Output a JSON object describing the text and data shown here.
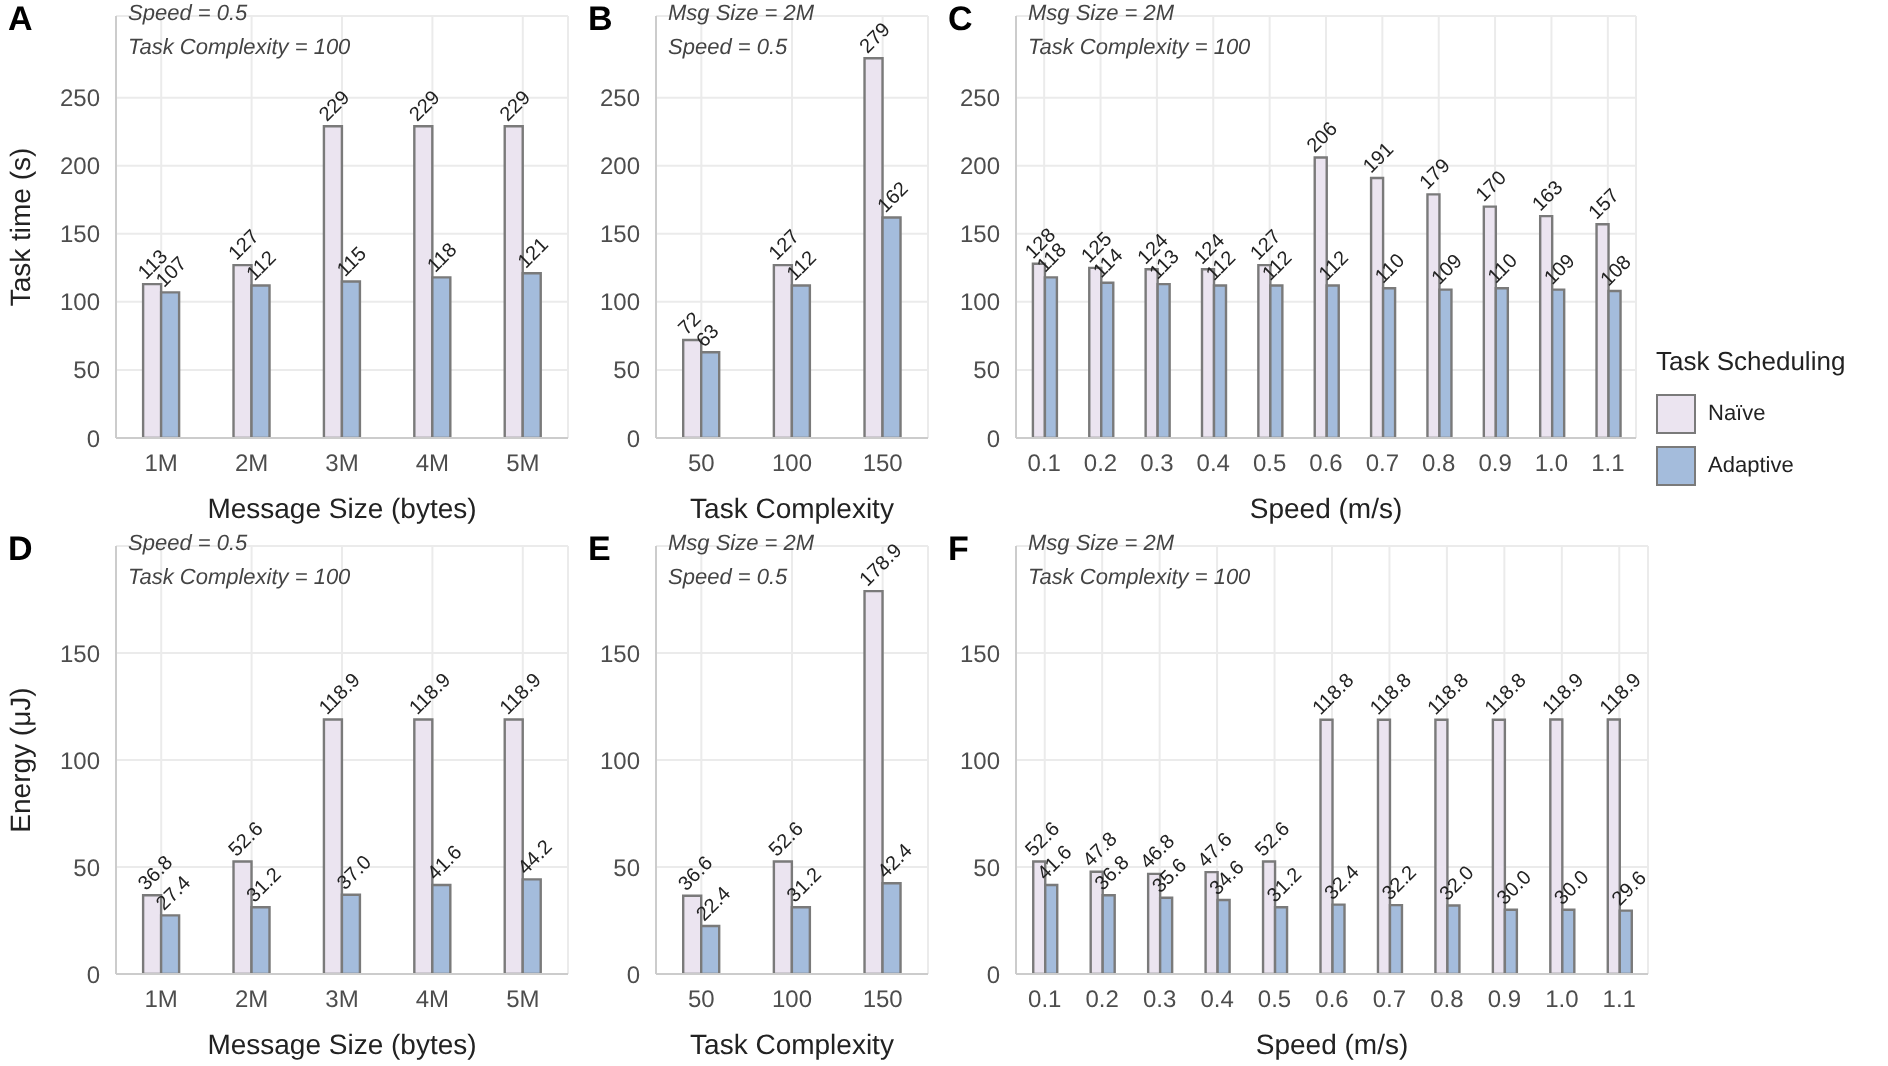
{
  "chart_data": [
    {
      "type": "bar",
      "title": "A",
      "annotations": [
        "Speed = 0.5",
        "Task Complexity = 100"
      ],
      "xlabel": "Message Size (bytes)",
      "ylabel": "Task time (s)",
      "categories": [
        "1M",
        "2M",
        "3M",
        "4M",
        "5M"
      ],
      "series": [
        {
          "color": "#ebe4f0",
          "values": [
            113,
            127,
            229,
            229,
            229
          ]
        },
        {
          "color": "#a4bcdc",
          "values": [
            107,
            112,
            115,
            118,
            121
          ]
        }
      ],
      "ylim": [
        0,
        310
      ],
      "yticks": [
        0,
        50,
        100,
        150,
        200,
        250
      ],
      "grid": true,
      "data_labels": true
    },
    {
      "type": "bar",
      "title": "B",
      "annotations": [
        "Msg Size = 2M",
        "Speed = 0.5"
      ],
      "xlabel": "Task Complexity",
      "categories": [
        "50",
        "100",
        "150"
      ],
      "series": [
        {
          "color": "#ebe4f0",
          "values": [
            72,
            127,
            279
          ]
        },
        {
          "color": "#a4bcdc",
          "values": [
            63,
            112,
            162
          ]
        }
      ],
      "ylim": [
        0,
        310
      ],
      "yticks": [
        0,
        50,
        100,
        150,
        200,
        250
      ],
      "grid": true,
      "data_labels": true
    },
    {
      "type": "bar",
      "title": "C",
      "annotations": [
        "Msg Size = 2M",
        "Task Complexity = 100"
      ],
      "xlabel": "Speed (m/s)",
      "legend_title": "Task Scheduling",
      "legend": "right",
      "categories": [
        "0.1",
        "0.2",
        "0.3",
        "0.4",
        "0.5",
        "0.6",
        "0.7",
        "0.8",
        "0.9",
        "1.0",
        "1.1"
      ],
      "series": [
        {
          "name": "Naïve",
          "color": "#ebe4f0",
          "values": [
            128,
            125,
            124,
            124,
            127,
            206,
            191,
            179,
            170,
            163,
            157
          ]
        },
        {
          "name": "Adaptive",
          "color": "#a4bcdc",
          "values": [
            118,
            114,
            113,
            112,
            112,
            112,
            110,
            109,
            110,
            109,
            108
          ]
        }
      ],
      "ylim": [
        0,
        310
      ],
      "yticks": [
        0,
        50,
        100,
        150,
        200,
        250
      ],
      "grid": true,
      "data_labels": true
    },
    {
      "type": "bar",
      "title": "D",
      "annotations": [
        "Speed = 0.5",
        "Task Complexity = 100"
      ],
      "xlabel": "Message Size (bytes)",
      "ylabel": "Energy (μJ)",
      "categories": [
        "1M",
        "2M",
        "3M",
        "4M",
        "5M"
      ],
      "series": [
        {
          "color": "#ebe4f0",
          "values": [
            36.8,
            52.6,
            118.9,
            118.9,
            118.9
          ],
          "value_labels": [
            "36.8",
            "52.6",
            "118.9",
            "118.9",
            "118.9"
          ]
        },
        {
          "color": "#a4bcdc",
          "values": [
            27.4,
            31.2,
            37.0,
            41.6,
            44.2
          ],
          "value_labels": [
            "27.4",
            "31.2",
            "37.0",
            "41.6",
            "44.2"
          ]
        }
      ],
      "ylim": [
        0,
        200
      ],
      "yticks": [
        0,
        50,
        100,
        150
      ],
      "grid": true
    },
    {
      "type": "bar",
      "title": "E",
      "annotations": [
        "Msg Size = 2M",
        "Speed = 0.5"
      ],
      "xlabel": "Task Complexity",
      "categories": [
        "50",
        "100",
        "150"
      ],
      "series": [
        {
          "color": "#ebe4f0",
          "values": [
            36.6,
            52.6,
            178.9
          ],
          "value_labels": [
            "36.6",
            "52.6",
            "178.9"
          ]
        },
        {
          "color": "#a4bcdc",
          "values": [
            22.4,
            31.2,
            42.4
          ],
          "value_labels": [
            "22.4",
            "31.2",
            "42.4"
          ]
        }
      ],
      "ylim": [
        0,
        200
      ],
      "yticks": [
        0,
        50,
        100,
        150
      ],
      "grid": true
    },
    {
      "type": "bar",
      "title": "F",
      "annotations": [
        "Msg Size = 2M",
        "Task Complexity = 100"
      ],
      "xlabel": "Speed (m/s)",
      "categories": [
        "0.1",
        "0.2",
        "0.3",
        "0.4",
        "0.5",
        "0.6",
        "0.7",
        "0.8",
        "0.9",
        "1.0",
        "1.1"
      ],
      "series": [
        {
          "color": "#ebe4f0",
          "values": [
            52.6,
            47.8,
            46.8,
            47.6,
            52.6,
            118.8,
            118.8,
            118.8,
            118.8,
            118.9,
            118.9
          ],
          "value_labels": [
            "52.6",
            "47.8",
            "46.8",
            "47.6",
            "52.6",
            "118.8",
            "118.8",
            "118.8",
            "118.8",
            "118.9",
            "118.9"
          ]
        },
        {
          "color": "#a4bcdc",
          "values": [
            41.6,
            36.8,
            35.6,
            34.6,
            31.2,
            32.4,
            32.2,
            32.0,
            30.0,
            30.0,
            29.6
          ],
          "value_labels": [
            "41.6",
            "36.8",
            "35.6",
            "34.6",
            "31.2",
            "32.4",
            "32.2",
            "32.0",
            "30.0",
            "30.0",
            "29.6"
          ]
        }
      ],
      "ylim": [
        0,
        200
      ],
      "yticks": [
        0,
        50,
        100,
        150
      ],
      "grid": true
    }
  ]
}
